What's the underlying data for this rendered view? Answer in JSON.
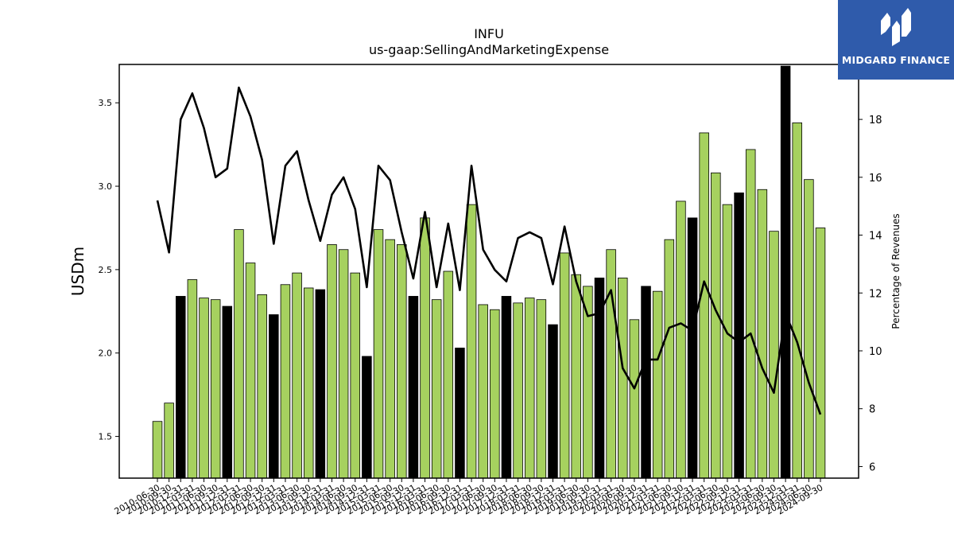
{
  "colors": {
    "bar_normal": "#a6d15f",
    "bar_highlight": "#000000",
    "line": "#000000",
    "logo_bg": "#2f5bab"
  },
  "logo": {
    "text": "MIDGARD FINANCE",
    "icon": "midgard-logo-icon"
  },
  "chart_data": {
    "type": "bar",
    "title": "INFU",
    "subtitle": "us-gaap:SellingAndMarketingExpense",
    "ylabel": "USDm",
    "y2label": "Percentage of Revenues",
    "ylim": [
      1.25,
      3.73
    ],
    "y2lim": [
      5.6,
      19.9
    ],
    "yticks": [
      "1.5",
      "2.0",
      "2.5",
      "3.0",
      "3.5"
    ],
    "y2ticks": [
      "6",
      "8",
      "10",
      "12",
      "14",
      "16",
      "18"
    ],
    "categories": [
      "2010-06-30",
      "2010-09-30",
      "2010-12-31",
      "2011-03-31",
      "2011-06-30",
      "2011-09-30",
      "2011-12-31",
      "2012-03-31",
      "2012-06-30",
      "2012-09-30",
      "2012-12-31",
      "2013-03-31",
      "2013-06-30",
      "2013-09-30",
      "2013-12-31",
      "2014-03-31",
      "2014-06-30",
      "2014-09-30",
      "2014-12-31",
      "2015-03-31",
      "2015-06-30",
      "2015-09-30",
      "2015-12-31",
      "2016-03-31",
      "2016-06-30",
      "2016-09-30",
      "2016-12-31",
      "2017-03-31",
      "2017-06-30",
      "2017-09-30",
      "2017-12-31",
      "2018-03-31",
      "2018-06-30",
      "2018-09-30",
      "2018-12-31",
      "2019-03-31",
      "2019-06-30",
      "2019-09-30",
      "2019-12-31",
      "2020-03-31",
      "2020-06-30",
      "2020-09-30",
      "2020-12-31",
      "2021-03-31",
      "2021-06-30",
      "2021-09-30",
      "2021-12-31",
      "2022-03-31",
      "2022-06-30",
      "2022-09-30",
      "2022-12-31",
      "2023-03-31",
      "2023-06-30",
      "2023-09-30",
      "2023-12-31",
      "2024-03-31",
      "2024-06-30",
      "2024-09-30"
    ],
    "series": [
      {
        "type": "bar",
        "axis": "left",
        "values": [
          1.59,
          1.7,
          2.34,
          2.44,
          2.33,
          2.32,
          2.28,
          2.74,
          2.54,
          2.35,
          2.23,
          2.41,
          2.48,
          2.39,
          2.38,
          2.65,
          2.62,
          2.48,
          1.98,
          2.74,
          2.68,
          2.65,
          2.34,
          2.81,
          2.32,
          2.49,
          2.03,
          2.89,
          2.29,
          2.26,
          2.34,
          2.3,
          2.33,
          2.32,
          2.17,
          2.6,
          2.47,
          2.4,
          2.45,
          2.62,
          2.45,
          2.2,
          2.4,
          2.37,
          2.68,
          2.91,
          2.81,
          3.32,
          3.08,
          2.89,
          2.96,
          3.22,
          2.98,
          2.73,
          3.72,
          3.38,
          3.04,
          2.75
        ],
        "highlight": [
          false,
          false,
          true,
          false,
          false,
          false,
          true,
          false,
          false,
          false,
          true,
          false,
          false,
          false,
          true,
          false,
          false,
          false,
          true,
          false,
          false,
          false,
          true,
          false,
          false,
          false,
          true,
          false,
          false,
          false,
          true,
          false,
          false,
          false,
          true,
          false,
          false,
          false,
          true,
          false,
          false,
          false,
          true,
          false,
          false,
          false,
          true,
          false,
          false,
          false,
          true,
          false,
          false,
          false,
          true,
          false,
          false,
          false
        ]
      },
      {
        "type": "line",
        "axis": "right",
        "values": [
          15.2,
          13.4,
          18.0,
          18.9,
          17.7,
          16.0,
          16.3,
          19.1,
          18.1,
          16.6,
          13.7,
          16.4,
          16.9,
          15.2,
          13.8,
          15.4,
          16.0,
          14.9,
          12.2,
          16.4,
          15.9,
          14.1,
          12.5,
          14.8,
          12.2,
          14.4,
          12.1,
          16.4,
          13.5,
          12.8,
          12.4,
          13.9,
          14.1,
          13.9,
          12.3,
          14.3,
          12.4,
          11.2,
          11.3,
          12.1,
          9.4,
          8.7,
          9.7,
          9.7,
          10.8,
          10.95,
          10.7,
          12.4,
          11.4,
          10.6,
          10.3,
          10.6,
          9.4,
          8.55,
          11.3,
          10.3,
          8.9,
          7.8
        ]
      }
    ],
    "grid": false,
    "legend": "none"
  }
}
